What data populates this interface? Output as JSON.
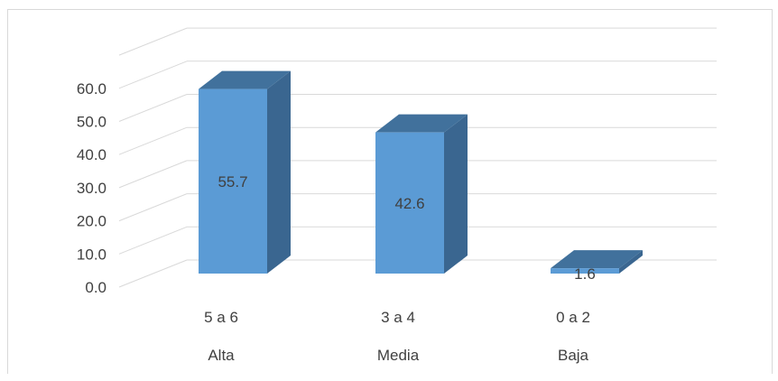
{
  "chart_data": {
    "type": "bar",
    "title": "",
    "xlabel": "",
    "ylabel": "",
    "ylim": [
      0,
      60
    ],
    "y_ticks": [
      "0.0",
      "10.0",
      "20.0",
      "30.0",
      "40.0",
      "50.0",
      "60.0"
    ],
    "grid": true,
    "three_d": true,
    "categories": [
      "5 a 6",
      "3 a 4",
      "0 a 2"
    ],
    "group_labels": [
      "Alta",
      "Media",
      "Baja"
    ],
    "values": [
      55.7,
      42.6,
      1.6
    ],
    "value_labels": [
      "55.7",
      "42.6",
      "1.6"
    ],
    "colors": {
      "bar_front": "#5b9bd5",
      "bar_top": "#41719c",
      "bar_side": "#3a6690",
      "grid": "#d9d9d9",
      "text": "#404040"
    }
  }
}
